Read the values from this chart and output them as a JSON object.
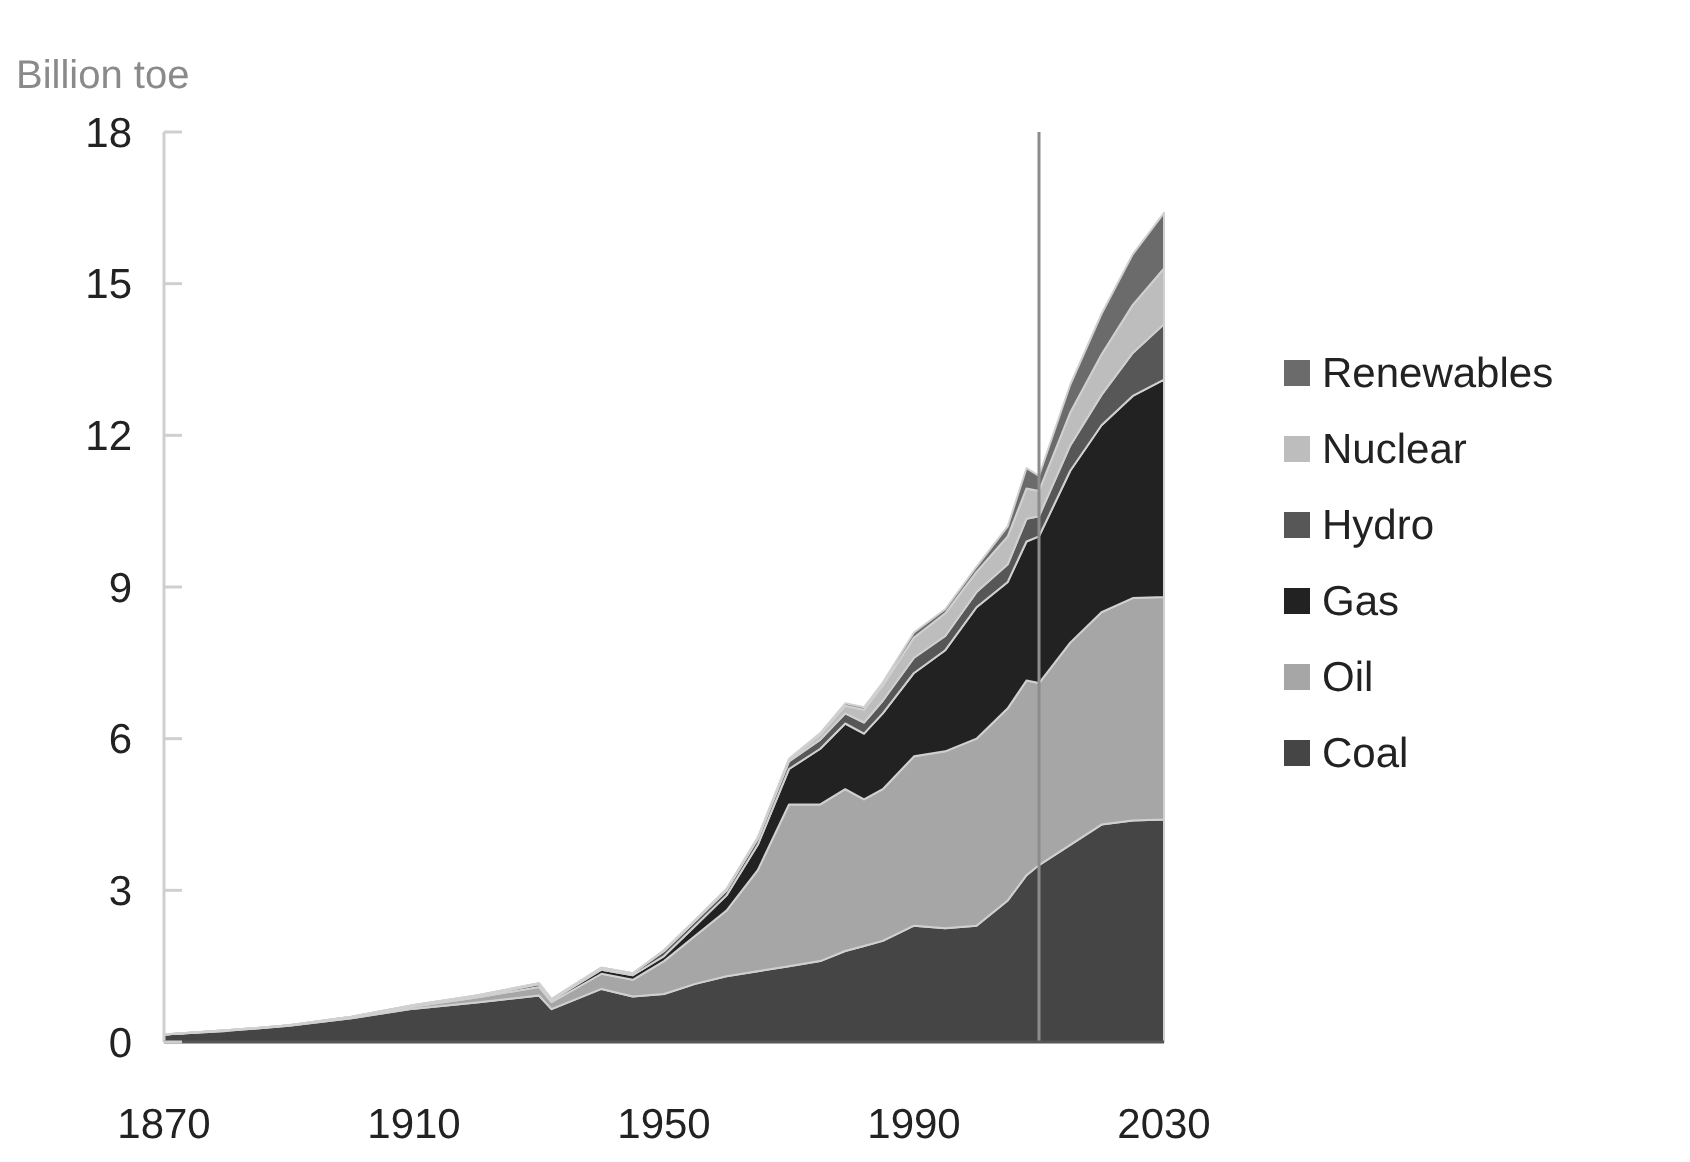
{
  "chart_data": {
    "type": "area",
    "stacked": true,
    "ylabel": "Billion toe",
    "x": [
      1870,
      1880,
      1890,
      1900,
      1910,
      1920,
      1930,
      1932,
      1940,
      1945,
      1950,
      1955,
      1960,
      1965,
      1970,
      1975,
      1979,
      1982,
      1985,
      1990,
      1995,
      2000,
      2005,
      2008,
      2010,
      2015,
      2020,
      2025,
      2030
    ],
    "series": [
      {
        "name": "Coal",
        "color": "#454545",
        "values": [
          0.15,
          0.22,
          0.32,
          0.47,
          0.66,
          0.78,
          0.92,
          0.65,
          1.05,
          0.9,
          0.95,
          1.15,
          1.3,
          1.4,
          1.5,
          1.6,
          1.8,
          1.9,
          2.0,
          2.3,
          2.25,
          2.3,
          2.8,
          3.3,
          3.5,
          3.9,
          4.3,
          4.38,
          4.4
        ]
      },
      {
        "name": "Oil",
        "color": "#a6a6a6",
        "values": [
          0,
          0.01,
          0.01,
          0.02,
          0.04,
          0.1,
          0.17,
          0.14,
          0.3,
          0.33,
          0.65,
          0.95,
          1.3,
          2.0,
          3.2,
          3.1,
          3.2,
          2.9,
          3.0,
          3.35,
          3.5,
          3.7,
          3.8,
          3.85,
          3.6,
          4.0,
          4.2,
          4.4,
          4.4
        ]
      },
      {
        "name": "Gas",
        "color": "#222222",
        "values": [
          0,
          0,
          0,
          0.01,
          0.02,
          0.03,
          0.05,
          0.04,
          0.08,
          0.09,
          0.1,
          0.2,
          0.3,
          0.5,
          0.7,
          1.1,
          1.3,
          1.3,
          1.5,
          1.65,
          2.0,
          2.6,
          2.5,
          2.75,
          2.9,
          3.4,
          3.7,
          4.0,
          4.3
        ]
      },
      {
        "name": "Hydro",
        "color": "#575757",
        "values": [
          0,
          0,
          0,
          0,
          0.01,
          0.01,
          0.02,
          0.02,
          0.04,
          0.04,
          0.1,
          0.1,
          0.1,
          0.12,
          0.15,
          0.18,
          0.2,
          0.22,
          0.25,
          0.3,
          0.28,
          0.3,
          0.35,
          0.45,
          0.4,
          0.5,
          0.6,
          0.85,
          1.1
        ]
      },
      {
        "name": "Nuclear",
        "color": "#bdbdbd",
        "values": [
          0,
          0,
          0,
          0,
          0,
          0,
          0,
          0,
          0,
          0,
          0,
          0,
          0,
          0.01,
          0.03,
          0.1,
          0.15,
          0.25,
          0.3,
          0.4,
          0.45,
          0.4,
          0.55,
          0.6,
          0.5,
          0.65,
          0.8,
          0.95,
          1.1
        ]
      },
      {
        "name": "Renewables",
        "color": "#6b6b6b",
        "values": [
          0,
          0,
          0,
          0,
          0,
          0,
          0,
          0,
          0,
          0,
          0.02,
          0.02,
          0.03,
          0.02,
          0.02,
          0.03,
          0.05,
          0.05,
          0.06,
          0.1,
          0.08,
          0.1,
          0.2,
          0.4,
          0.3,
          0.55,
          0.8,
          1.0,
          1.1
        ]
      }
    ],
    "xlim": [
      1870,
      2030
    ],
    "xticks": [
      1870,
      1910,
      1950,
      1990,
      2030
    ],
    "ylim": [
      0,
      18
    ],
    "yticks": [
      0,
      3,
      6,
      9,
      12,
      15,
      18
    ],
    "ref_lines": [
      {
        "axis": "x",
        "value": 2010,
        "color": "#8c8c8c"
      }
    ],
    "legend": "right",
    "grid": false
  }
}
